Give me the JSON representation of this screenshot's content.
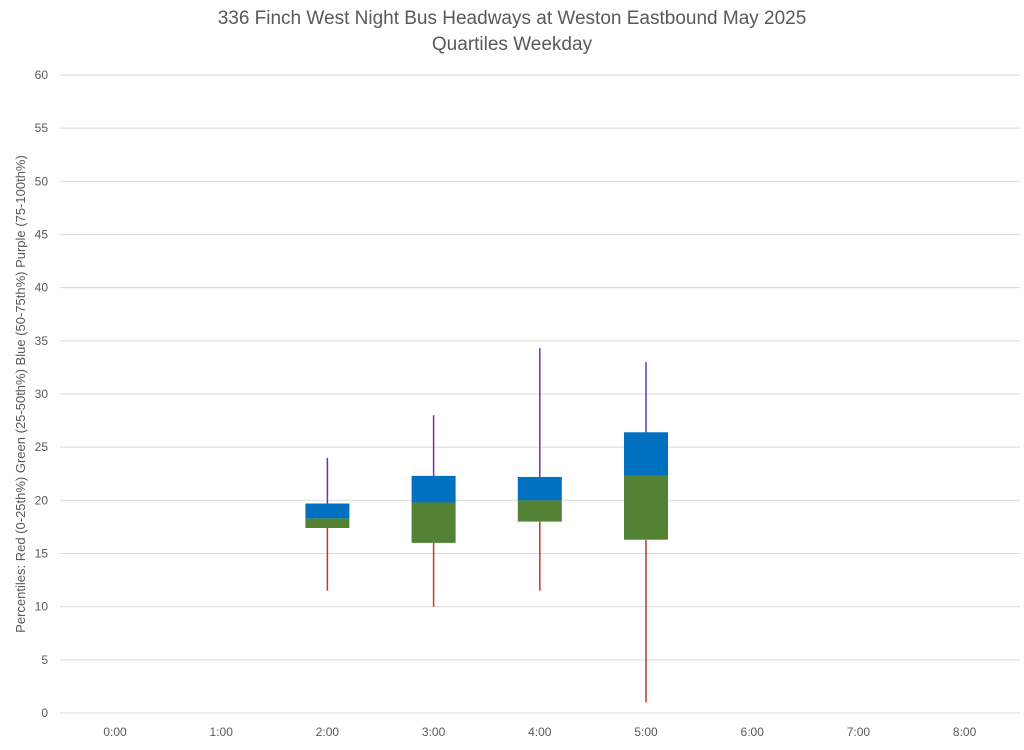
{
  "chart_data": {
    "type": "box",
    "title": "336 Finch West Night Bus Headways at Weston Eastbound May 2025",
    "subtitle": "Quartiles Weekday",
    "ylabel": "Percentiles:  Red (0-25th%)  Green (25-50th%)  Blue (50-75th%)  Purple (75-100th%)",
    "ylim": [
      0,
      60
    ],
    "ytick_step": 5,
    "categories": [
      "0:00",
      "1:00",
      "2:00",
      "3:00",
      "4:00",
      "5:00",
      "6:00",
      "7:00",
      "8:00"
    ],
    "grid": true,
    "colors": {
      "p0_25": "#c0392b",
      "p25_50": "#548235",
      "p50_75": "#0070c0",
      "p75_100": "#7030a0",
      "grid": "#d9d9d9",
      "text": "#595959"
    },
    "boxes": [
      {
        "category": "2:00",
        "min": 11.5,
        "q1": 17.4,
        "median": 18.3,
        "q3": 19.7,
        "max": 24
      },
      {
        "category": "3:00",
        "min": 10,
        "q1": 16,
        "median": 19.8,
        "q3": 22.3,
        "max": 28
      },
      {
        "category": "4:00",
        "min": 11.5,
        "q1": 18,
        "median": 20,
        "q3": 22.2,
        "max": 34.3
      },
      {
        "category": "5:00",
        "min": 1,
        "q1": 16.3,
        "median": 22.3,
        "q3": 26.4,
        "max": 33
      }
    ]
  }
}
